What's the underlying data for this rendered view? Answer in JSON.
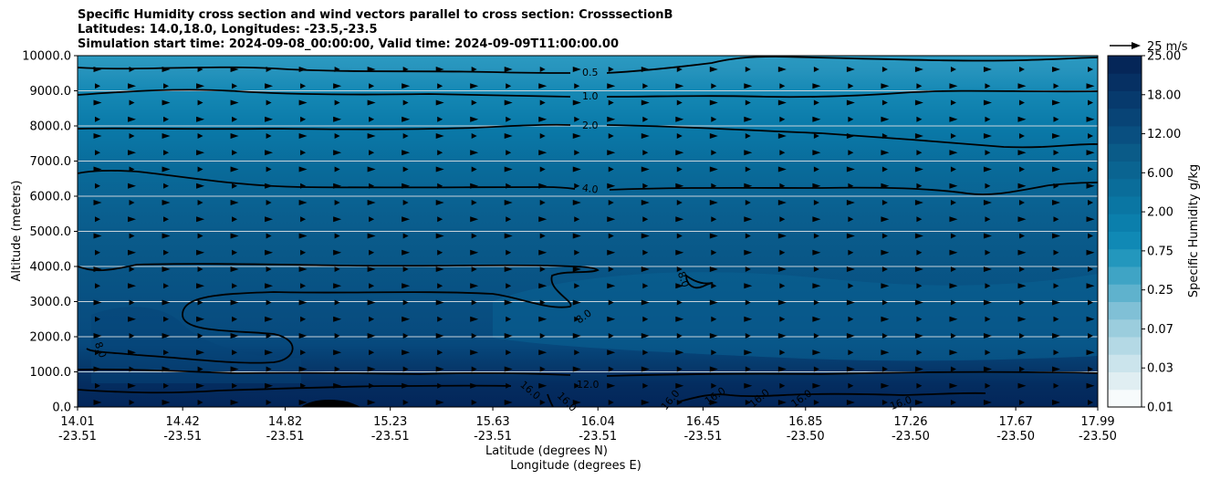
{
  "title_lines": [
    "Specific Humidity cross section and wind vectors parallel to cross section: CrosssectionB",
    "Latitudes: 14.0,18.0, Longitudes: -23.5,-23.5",
    "Simulation start time: 2024-09-08_00:00:00, Valid time: 2024-09-09T11:00:00.00"
  ],
  "chart_data": {
    "type": "heatmap",
    "title": "Specific Humidity cross section and wind vectors parallel to cross section: CrosssectionB",
    "xlabel": "Latitude (degrees N)",
    "xlabel2": "Longitude (degrees E)",
    "ylabel": "Altitude (meters)",
    "ylim": [
      0,
      10000
    ],
    "y_ticks": [
      0,
      1000,
      2000,
      3000,
      4000,
      5000,
      6000,
      7000,
      8000,
      9000,
      10000
    ],
    "y_tick_labels": [
      "0.0",
      "1000.0",
      "2000.0",
      "3000.0",
      "4000.0",
      "5000.0",
      "6000.0",
      "7000.0",
      "8000.0",
      "9000.0",
      "10000.0"
    ],
    "x_tick_lat": [
      "14.01",
      "14.42",
      "14.82",
      "15.23",
      "15.63",
      "16.04",
      "16.45",
      "16.85",
      "17.26",
      "17.67",
      "17.99"
    ],
    "x_tick_lon": [
      "-23.51",
      "-23.51",
      "-23.51",
      "-23.51",
      "-23.51",
      "-23.51",
      "-23.51",
      "-23.50",
      "-23.50",
      "-23.50",
      "-23.50"
    ],
    "grid": "horizontal",
    "contour_levels": [
      "0.5",
      "1.0",
      "2.0",
      "4.0",
      "8.0",
      "12.0",
      "16.0"
    ],
    "humidity_profile_gkg": [
      {
        "altitude": 0,
        "value": 17.5
      },
      {
        "altitude": 500,
        "value": 15.0
      },
      {
        "altitude": 1000,
        "value": 11.0
      },
      {
        "altitude": 2000,
        "value": 8.5
      },
      {
        "altitude": 3000,
        "value": 8.0
      },
      {
        "altitude": 4000,
        "value": 7.0
      },
      {
        "altitude": 5000,
        "value": 5.5
      },
      {
        "altitude": 6000,
        "value": 4.0
      },
      {
        "altitude": 7000,
        "value": 3.0
      },
      {
        "altitude": 8000,
        "value": 2.0
      },
      {
        "altitude": 9000,
        "value": 1.0
      },
      {
        "altitude": 10000,
        "value": 0.4
      }
    ],
    "wind_reference": "25 m/s",
    "colorbar": {
      "label": "Specific Humidity g/kg",
      "tick_labels": [
        "0.01",
        "0.03",
        "0.07",
        "0.25",
        "0.75",
        "2.00",
        "6.00",
        "12.00",
        "18.00",
        "25.00"
      ],
      "colors": [
        "#f7fbfc",
        "#e0eef2",
        "#cbe4ec",
        "#b4d9e5",
        "#9bcddd",
        "#80c0d6",
        "#5fb2cd",
        "#3fa4c5",
        "#2397bd",
        "#1089b5",
        "#0b7fac",
        "#0a76a3",
        "#0a6d9a",
        "#0a6491",
        "#0a5b88",
        "#094f80",
        "#084476",
        "#073a6d",
        "#063063",
        "#052658"
      ]
    }
  }
}
